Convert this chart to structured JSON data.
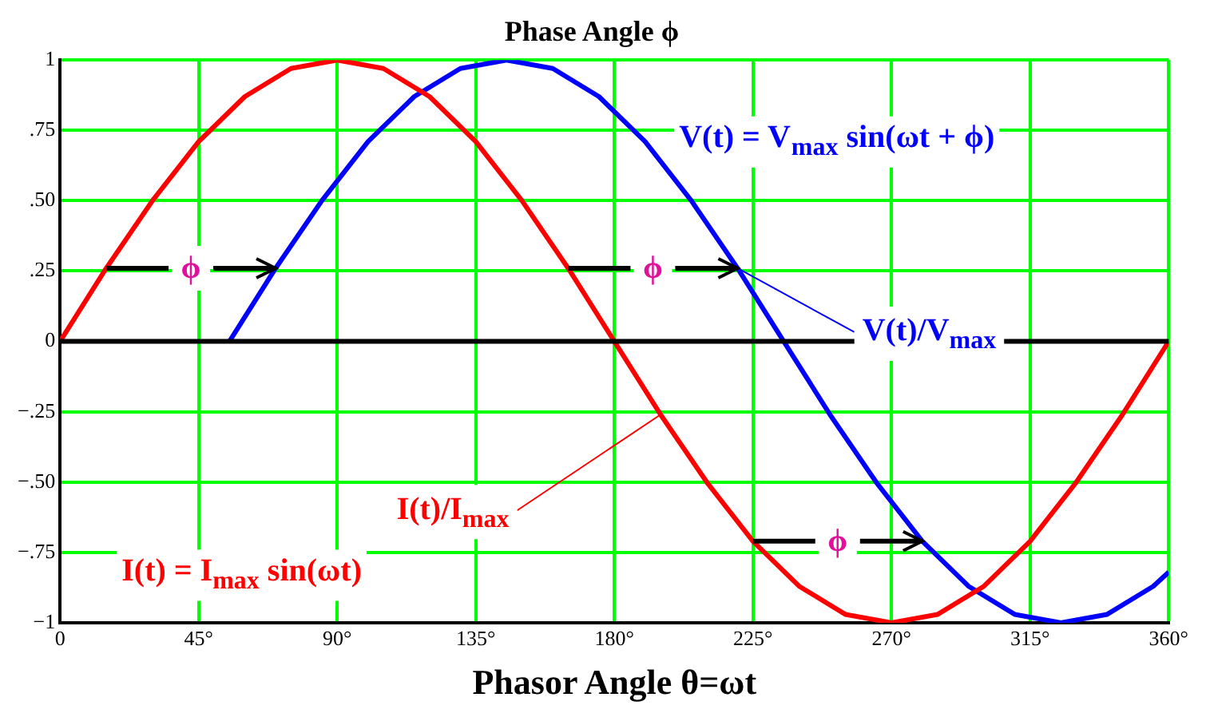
{
  "chart_data": {
    "type": "line",
    "title": "Phase Angle ϕ",
    "xlabel": "Phasor Angle θ=ωt",
    "x": [
      0,
      15,
      30,
      45,
      60,
      75,
      90,
      105,
      120,
      135,
      150,
      165,
      180,
      195,
      210,
      225,
      240,
      255,
      270,
      285,
      300,
      315,
      330,
      345,
      360
    ],
    "series": [
      {
        "name": "I(t) = I$_{max}$ sin(ωt)",
        "color": "#ff0000",
        "values": [
          0,
          0.26,
          0.5,
          0.71,
          0.87,
          0.97,
          1,
          0.97,
          0.87,
          0.71,
          0.5,
          0.26,
          0,
          -0.26,
          -0.5,
          -0.71,
          -0.87,
          -0.97,
          -1,
          -0.97,
          -0.87,
          -0.71,
          -0.5,
          -0.26,
          0
        ]
      },
      {
        "name": "V(t) = V$_{max}$ sin(ωt + ϕ)",
        "color": "#0000ff",
        "x": [
          55,
          70,
          85,
          100,
          115,
          130,
          145,
          160,
          175,
          190,
          205,
          220,
          235,
          250,
          265,
          280,
          295,
          310,
          325,
          340,
          355,
          360
        ],
        "values": [
          0,
          0.26,
          0.5,
          0.71,
          0.87,
          0.97,
          1,
          0.97,
          0.87,
          0.71,
          0.5,
          0.26,
          0,
          -0.26,
          -0.5,
          -0.71,
          -0.87,
          -0.97,
          -1,
          -0.97,
          -0.87,
          -0.82
        ]
      }
    ],
    "annotations": [
      {
        "text": "V(t)/V$_{max}$",
        "x": 220,
        "y": 0.26
      },
      {
        "text": "I(t)/I$_{max}$",
        "x": 195,
        "y": -0.26
      },
      {
        "text": "ϕ",
        "x": 70,
        "y": 0.26
      },
      {
        "text": "ϕ",
        "x": 220,
        "y": 0.26
      },
      {
        "text": "ϕ",
        "x": 280,
        "y": -0.71
      }
    ],
    "ref_lines": [
      {
        "axis": "y",
        "value": 0,
        "color": "#000000"
      }
    ],
    "xlim": [
      0,
      360
    ],
    "xticks": [
      0,
      {
        "value": 45,
        "label": "45°"
      },
      {
        "value": 90,
        "label": "90°"
      },
      {
        "value": 135,
        "label": "135°"
      },
      {
        "value": 180,
        "label": "180°"
      },
      {
        "value": 225,
        "label": "225°"
      },
      {
        "value": 270,
        "label": "270°"
      },
      {
        "value": 315,
        "label": "315°"
      },
      {
        "value": 360,
        "label": "360°"
      }
    ],
    "ylim": [
      -1,
      1
    ],
    "yticks": [
      {
        "value": -1,
        "label": "−1"
      },
      {
        "value": -0.75,
        "label": "−.75"
      },
      {
        "value": -0.5,
        "label": "−.50"
      },
      {
        "value": -0.25,
        "label": "−.25"
      },
      0,
      {
        "value": 0.25,
        "label": ".25"
      },
      {
        "value": 0.5,
        "label": ".50"
      },
      {
        "value": 0.75,
        "label": ".75"
      },
      1
    ],
    "grid": true,
    "legend": false,
    "marker": "none",
    "line_style": "solid"
  }
}
